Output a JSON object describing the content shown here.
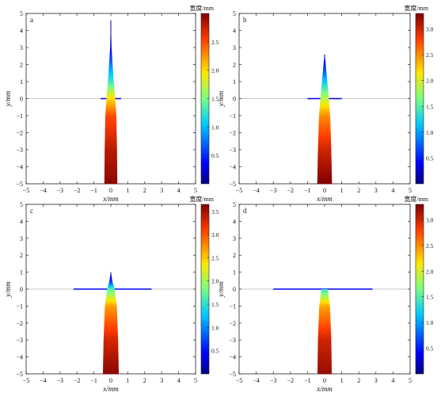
{
  "chart_data": [
    {
      "type": "heatmap",
      "panel_label": "a",
      "xlabel": "x/mm",
      "ylabel": "y/mm",
      "xlim": [
        -5,
        5
      ],
      "ylim": [
        -5,
        5
      ],
      "x_ticks": [
        -5,
        -4,
        -3,
        -2,
        -1,
        0,
        1,
        2,
        3,
        4,
        5
      ],
      "y_ticks": [
        -5,
        -4,
        -3,
        -2,
        -1,
        0,
        1,
        2,
        3,
        4,
        5
      ],
      "colorbar_label": "宽度/mm",
      "colorbar_range": [
        0,
        3.0
      ],
      "colorbar_ticks": [
        0.5,
        1.0,
        1.5,
        2.0,
        2.5
      ],
      "vertical_crack": {
        "x": 0,
        "y_start": -5,
        "y_end": 4.6,
        "width_profile": [
          [
            -5,
            2.95
          ],
          [
            -3,
            2.8
          ],
          [
            -1,
            2.5
          ],
          [
            0,
            2.0
          ],
          [
            1,
            1.3
          ],
          [
            2,
            0.8
          ],
          [
            3,
            0.3
          ],
          [
            4.6,
            0.05
          ]
        ]
      },
      "horizontal_crack": {
        "y": 0,
        "x_range": [
          -0.6,
          0.6
        ],
        "width": 0.05
      },
      "reference_line_y": 0,
      "grid": false
    },
    {
      "type": "heatmap",
      "panel_label": "b",
      "xlabel": "x/mm",
      "ylabel": "y/mm",
      "xlim": [
        -5,
        5
      ],
      "ylim": [
        -5,
        5
      ],
      "x_ticks": [
        -5,
        -4,
        -3,
        -2,
        -1,
        0,
        1,
        2,
        3,
        4,
        5
      ],
      "y_ticks": [
        -5,
        -4,
        -3,
        -2,
        -1,
        0,
        1,
        2,
        3,
        4,
        5
      ],
      "colorbar_label": "宽度/mm",
      "colorbar_range": [
        0,
        3.3
      ],
      "colorbar_ticks": [
        0.5,
        1.0,
        1.5,
        2.0,
        2.5,
        3.0
      ],
      "vertical_crack": {
        "x": 0,
        "y_start": -5,
        "y_end": 2.6,
        "width_profile": [
          [
            -5,
            3.3
          ],
          [
            -3,
            3.0
          ],
          [
            -1,
            2.5
          ],
          [
            0,
            1.9
          ],
          [
            1,
            1.2
          ],
          [
            2,
            0.5
          ],
          [
            2.6,
            0.05
          ]
        ]
      },
      "horizontal_crack": {
        "y": 0,
        "x_range": [
          -1.0,
          1.0
        ],
        "width": 0.05
      },
      "reference_line_y": 0,
      "grid": false
    },
    {
      "type": "heatmap",
      "panel_label": "c",
      "xlabel": "x/mm",
      "ylabel": "y/mm",
      "xlim": [
        -5,
        5
      ],
      "ylim": [
        -5,
        5
      ],
      "x_ticks": [
        -5,
        -4,
        -3,
        -2,
        -1,
        0,
        1,
        2,
        3,
        4,
        5
      ],
      "y_ticks": [
        -5,
        -4,
        -3,
        -2,
        -1,
        0,
        1,
        2,
        3,
        4,
        5
      ],
      "colorbar_label": "宽度/mm",
      "colorbar_range": [
        0,
        3.65
      ],
      "colorbar_ticks": [
        0.5,
        1.0,
        1.5,
        2.0,
        2.5,
        3.0,
        3.5
      ],
      "vertical_crack": {
        "x": 0,
        "y_start": -5,
        "y_end": 1.0,
        "width_profile": [
          [
            -5,
            3.6
          ],
          [
            -3,
            3.3
          ],
          [
            -1,
            2.7
          ],
          [
            0,
            1.7
          ],
          [
            0.5,
            0.6
          ],
          [
            1.0,
            0.05
          ]
        ]
      },
      "horizontal_crack": {
        "y": 0,
        "x_range": [
          -2.2,
          2.4
        ],
        "width": 0.05
      },
      "reference_line_y": 0,
      "grid": false
    },
    {
      "type": "heatmap",
      "panel_label": "d",
      "xlabel": "x/mm",
      "ylabel": "y/mm",
      "xlim": [
        -5,
        5
      ],
      "ylim": [
        -5,
        5
      ],
      "x_ticks": [
        -5,
        -4,
        -3,
        -2,
        -1,
        0,
        1,
        2,
        3,
        4,
        5
      ],
      "y_ticks": [
        -5,
        -4,
        -3,
        -2,
        -1,
        0,
        1,
        2,
        3,
        4,
        5
      ],
      "colorbar_label": "宽度/mm",
      "colorbar_range": [
        0,
        3.3
      ],
      "colorbar_ticks": [
        0.5,
        1.0,
        1.5,
        2.0,
        2.5,
        3.0
      ],
      "vertical_crack": {
        "x": 0,
        "y_start": -5,
        "y_end": 0,
        "width_profile": [
          [
            -5,
            3.2
          ],
          [
            -3,
            3.0
          ],
          [
            -1,
            2.4
          ],
          [
            0,
            1.4
          ]
        ]
      },
      "horizontal_crack": {
        "y": 0,
        "x_range": [
          -3.0,
          2.8
        ],
        "width": 0.05
      },
      "reference_line_y": 0,
      "grid": false
    }
  ]
}
